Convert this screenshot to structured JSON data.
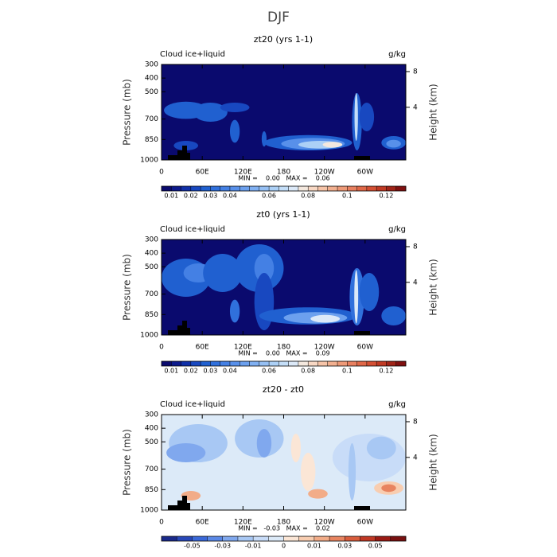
{
  "title": "DJF",
  "chart_data": [
    {
      "type": "contour",
      "title": "zt20 (yrs 1-1)",
      "variable": "Cloud ice+liquid",
      "units": "g/kg",
      "ylabel": "Pressure (mb)",
      "y2label": "Height (km)",
      "stats": "MIN =    0.00   MAX =    0.06",
      "xlim": [
        0,
        360
      ],
      "xticks": [
        0,
        {
          "value": 60,
          "label": "60E"
        },
        {
          "value": 120,
          "label": "120E"
        },
        {
          "value": 180,
          "label": "180"
        },
        {
          "value": 240,
          "label": "120W"
        },
        {
          "value": 300,
          "label": "60W"
        }
      ],
      "ylim": [
        300,
        1000
      ],
      "y_inverted": true,
      "yticks": [
        300,
        400,
        500,
        700,
        850,
        1000
      ],
      "y2lim": [
        8.8,
        -1.9
      ],
      "y2ticks": [
        8,
        4
      ],
      "colorbar": {
        "levels": [
          0.01,
          0.015,
          0.02,
          0.025,
          0.03,
          0.035,
          0.04,
          0.045,
          0.05,
          0.055,
          0.06,
          0.065,
          0.07,
          0.075,
          0.08,
          0.085,
          0.09,
          0.095,
          0.1,
          0.105,
          0.11,
          0.115,
          0.12,
          0.125
        ],
        "ticks": [
          0.01,
          0.02,
          0.03,
          0.04,
          0.06,
          0.08,
          0.1,
          0.12
        ],
        "colors": [
          "#0a0a6e",
          "#0d1a8c",
          "#1030a8",
          "#1848c0",
          "#2060d0",
          "#3070dc",
          "#4480e4",
          "#5890ea",
          "#6ca0ee",
          "#80b0f2",
          "#96c0f4",
          "#acd0f6",
          "#c4def8",
          "#dce9f8",
          "#f4e8de",
          "#f8d8c4",
          "#f6c4a8",
          "#f2b090",
          "#ee9a78",
          "#e88060",
          "#e06848",
          "#d45034",
          "#c03a24",
          "#a02418",
          "#801010"
        ]
      }
    },
    {
      "type": "contour",
      "title": "zt0 (yrs 1-1)",
      "variable": "Cloud ice+liquid",
      "units": "g/kg",
      "ylabel": "Pressure (mb)",
      "y2label": "Height (km)",
      "stats": "MIN =    0.00   MAX =    0.09",
      "xlim": [
        0,
        360
      ],
      "xticks": [
        0,
        {
          "value": 60,
          "label": "60E"
        },
        {
          "value": 120,
          "label": "120E"
        },
        {
          "value": 180,
          "label": "180"
        },
        {
          "value": 240,
          "label": "120W"
        },
        {
          "value": 300,
          "label": "60W"
        }
      ],
      "ylim": [
        300,
        1000
      ],
      "y_inverted": true,
      "yticks": [
        300,
        400,
        500,
        700,
        850,
        1000
      ],
      "y2lim": [
        8.8,
        -1.9
      ],
      "y2ticks": [
        8,
        4
      ],
      "colorbar": {
        "levels": [
          0.01,
          0.015,
          0.02,
          0.025,
          0.03,
          0.035,
          0.04,
          0.045,
          0.05,
          0.055,
          0.06,
          0.065,
          0.07,
          0.075,
          0.08,
          0.085,
          0.09,
          0.095,
          0.1,
          0.105,
          0.11,
          0.115,
          0.12,
          0.125
        ],
        "ticks": [
          0.01,
          0.02,
          0.03,
          0.04,
          0.06,
          0.08,
          0.1,
          0.12
        ],
        "colors": [
          "#0a0a6e",
          "#0d1a8c",
          "#1030a8",
          "#1848c0",
          "#2060d0",
          "#3070dc",
          "#4480e4",
          "#5890ea",
          "#6ca0ee",
          "#80b0f2",
          "#96c0f4",
          "#acd0f6",
          "#c4def8",
          "#dce9f8",
          "#f4e8de",
          "#f8d8c4",
          "#f6c4a8",
          "#f2b090",
          "#ee9a78",
          "#e88060",
          "#e06848",
          "#d45034",
          "#c03a24",
          "#a02418",
          "#801010"
        ]
      }
    },
    {
      "type": "contour",
      "title": "zt20 - zt0",
      "variable": "Cloud ice+liquid",
      "units": "g/kg",
      "ylabel": "Pressure (mb)",
      "y2label": "Height (km)",
      "stats": "MIN =   -0.03   MAX =    0.02",
      "xlim": [
        0,
        360
      ],
      "xticks": [
        0,
        {
          "value": 60,
          "label": "60E"
        },
        {
          "value": 120,
          "label": "120E"
        },
        {
          "value": 180,
          "label": "180"
        },
        {
          "value": 240,
          "label": "120W"
        },
        {
          "value": 300,
          "label": "60W"
        }
      ],
      "ylim": [
        300,
        1000
      ],
      "y_inverted": true,
      "yticks": [
        300,
        400,
        500,
        700,
        850,
        1000
      ],
      "y2lim": [
        8.8,
        -1.9
      ],
      "y2ticks": [
        8,
        4
      ],
      "colorbar": {
        "levels": [
          -0.06,
          -0.05,
          -0.04,
          -0.03,
          -0.02,
          -0.01,
          -0.005,
          0,
          0.005,
          0.01,
          0.02,
          0.03,
          0.04,
          0.05,
          0.06
        ],
        "ticks": [
          -0.05,
          -0.03,
          -0.01,
          0,
          0.01,
          0.03,
          0.05
        ],
        "colors": [
          "#1a2a8a",
          "#2848b8",
          "#3a68d8",
          "#5a88e6",
          "#80a8ee",
          "#a8c8f4",
          "#c8dcf8",
          "#dceaf8",
          "#fbe6d6",
          "#f8cdb0",
          "#f2ac88",
          "#e88460",
          "#d85c3c",
          "#c03824",
          "#9a1a14",
          "#781010"
        ]
      }
    }
  ]
}
